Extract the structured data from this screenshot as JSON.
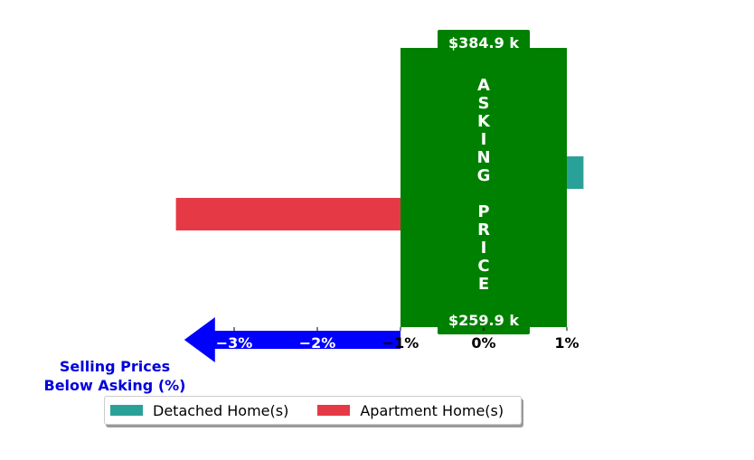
{
  "chart_data": {
    "type": "bar",
    "orientation": "horizontal",
    "series": [
      {
        "name": "Detached Home(s)",
        "value": 1.2,
        "color": "#2aa198"
      },
      {
        "name": "Apartment Home(s)",
        "value": -3.7,
        "color": "#e63946"
      }
    ],
    "x_ticks": [
      {
        "value": -3,
        "label": "−3%"
      },
      {
        "value": -2,
        "label": "−2%"
      },
      {
        "value": -1,
        "label": "−1%"
      },
      {
        "value": 0,
        "label": "0%"
      },
      {
        "value": 1,
        "label": "1%"
      }
    ],
    "xlim": [
      -3.7,
      1.2
    ],
    "asking_price_band": {
      "range": [
        -1,
        1
      ],
      "color": "#008000",
      "text": "ASKING PRICE",
      "top_price": "$384.9 k",
      "bottom_price": "$259.9 k"
    },
    "arrow": {
      "from": -1,
      "to": -3.6,
      "color": "#0000ff"
    },
    "ylabel": "Selling Prices\nBelow Asking (%)",
    "legend": {
      "position": "lower center",
      "items": [
        {
          "label": "Detached Home(s)",
          "color": "#2aa198"
        },
        {
          "label": "Apartment Home(s)",
          "color": "#e63946"
        }
      ]
    },
    "grid": false
  }
}
